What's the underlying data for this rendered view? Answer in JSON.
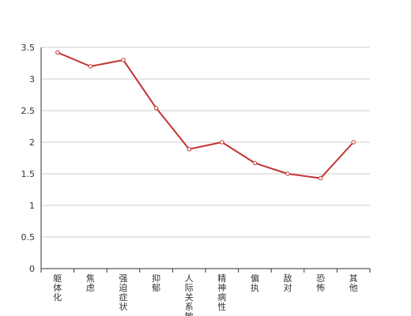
{
  "chart_data": {
    "type": "line",
    "categories": [
      "躯体化",
      "焦虑",
      "强迫症状",
      "抑郁",
      "人际关系敏感",
      "精神病性",
      "偏执",
      "敌对",
      "恐怖",
      "其他"
    ],
    "series": [
      {
        "values": [
          3.42,
          3.2,
          3.3,
          2.54,
          1.89,
          2.0,
          1.67,
          1.5,
          1.43,
          2.0
        ]
      }
    ],
    "yticks": [
      "0",
      "0.5",
      "1",
      "1.5",
      "2",
      "2.5",
      "3",
      "3.5"
    ],
    "ylim": [
      0,
      3.5
    ],
    "grid": true,
    "colors": {
      "line": "#c23531",
      "grid": "#cccccc",
      "axis": "#333333"
    }
  }
}
